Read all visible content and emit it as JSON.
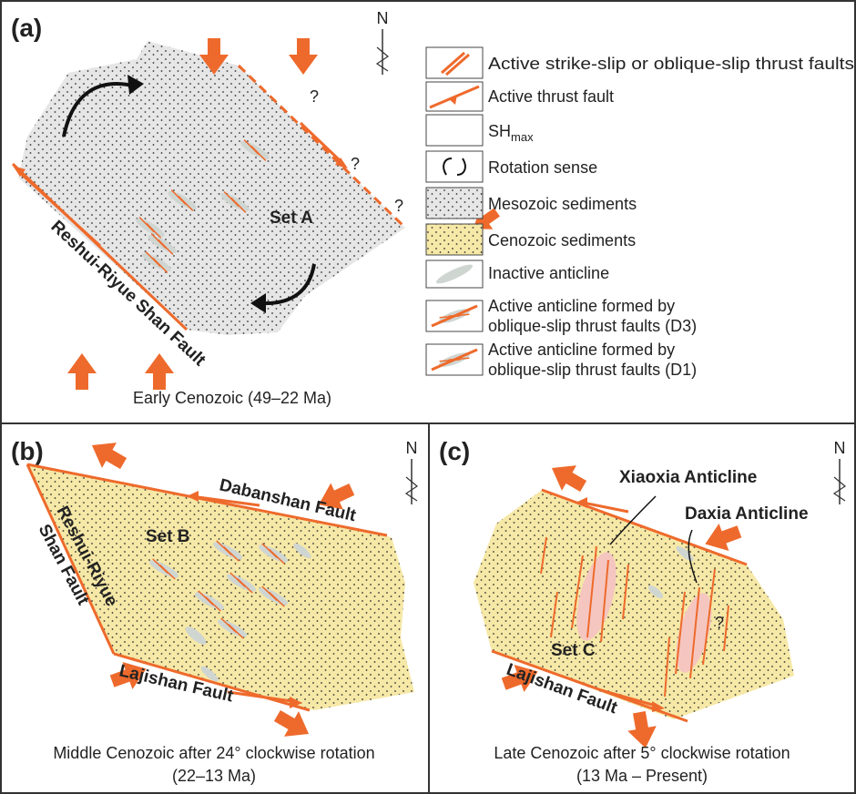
{
  "panel_a": {
    "label": "(a)",
    "north": "N",
    "set": "Set A",
    "fault": "Reshui-Riyue Shan Fault",
    "unknowns": [
      "?",
      "?",
      "?"
    ],
    "caption": "Early Cenozoic (49–22 Ma)"
  },
  "legend": [
    {
      "lines": [
        "Active strike-slip or oblique-slip thrust faults"
      ]
    },
    {
      "lines": [
        "Active thrust fault"
      ]
    },
    {
      "lines": [
        "SH"
      ],
      "subscript": "max"
    },
    {
      "lines": [
        "Rotation sense"
      ]
    },
    {
      "lines": [
        "Mesozoic sediments"
      ]
    },
    {
      "lines": [
        "Cenozoic sediments"
      ]
    },
    {
      "lines": [
        "Inactive anticline"
      ]
    },
    {
      "lines": [
        "Active anticline formed by",
        "oblique-slip thrust faults (D3)"
      ]
    },
    {
      "lines": [
        "Active anticline formed by",
        "oblique-slip thrust faults (D1)"
      ]
    }
  ],
  "panel_b": {
    "label": "(b)",
    "north": "N",
    "set": "Set B",
    "faults": [
      "Dabanshan Fault",
      "Reshui-Riyue",
      "Shan Fault",
      "Lajishan Fault"
    ],
    "caption": [
      "Middle Cenozoic after 24° clockwise rotation",
      "(22–13 Ma)"
    ]
  },
  "panel_c": {
    "label": "(c)",
    "north": "N",
    "set": "Set C",
    "anticlines": [
      "Xiaoxia Anticline",
      "Daxia Anticline"
    ],
    "fault": "Lajishan Fault",
    "unknown": "?",
    "caption": [
      "Late Cenozoic after 5° clockwise rotation",
      "(13 Ma – Present)"
    ]
  }
}
